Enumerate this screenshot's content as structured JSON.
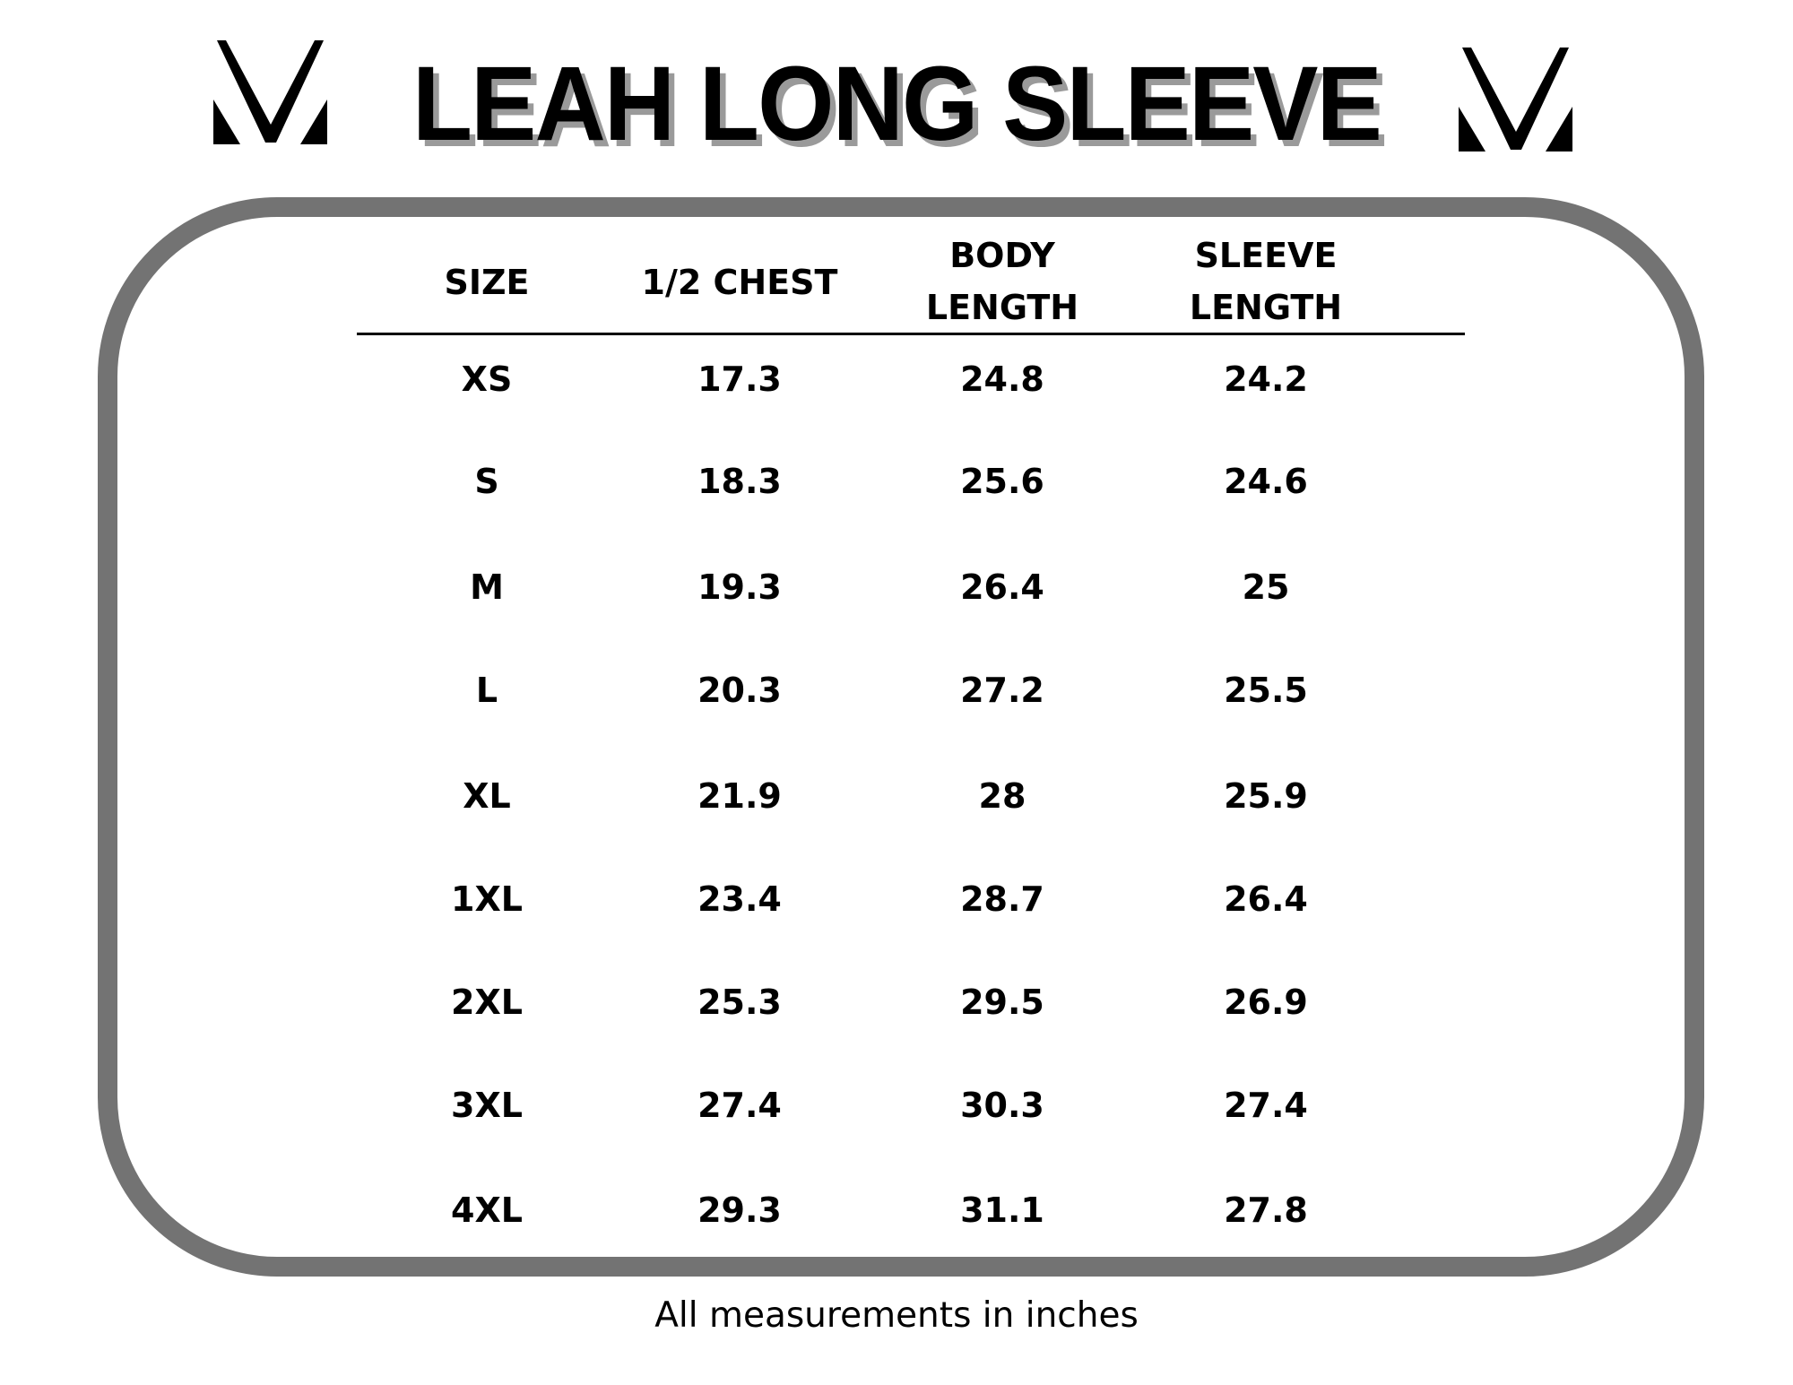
{
  "title": "LEAH LONG SLEEVE",
  "brand_logo": "M-chevron-logo",
  "colors": {
    "border": "#737373",
    "shadow": "#9a9a9a",
    "text": "#000000"
  },
  "table": {
    "headers": [
      {
        "line1": "SIZE",
        "line2": ""
      },
      {
        "line1": "1/2 CHEST",
        "line2": ""
      },
      {
        "line1": "BODY",
        "line2": "LENGTH"
      },
      {
        "line1": "SLEEVE",
        "line2": "LENGTH"
      }
    ],
    "rows": [
      [
        "XS",
        "17.3",
        "24.8",
        "24.2"
      ],
      [
        "S",
        "18.3",
        "25.6",
        "24.6"
      ],
      [
        "M",
        "19.3",
        "26.4",
        "25"
      ],
      [
        "L",
        "20.3",
        "27.2",
        "25.5"
      ],
      [
        "XL",
        "21.9",
        "28",
        "25.9"
      ],
      [
        "1XL",
        "23.4",
        "28.7",
        "26.4"
      ],
      [
        "2XL",
        "25.3",
        "29.5",
        "26.9"
      ],
      [
        "3XL",
        "27.4",
        "30.3",
        "27.4"
      ],
      [
        "4XL",
        "29.3",
        "31.1",
        "27.8"
      ]
    ]
  },
  "footer": "All measurements in inches"
}
